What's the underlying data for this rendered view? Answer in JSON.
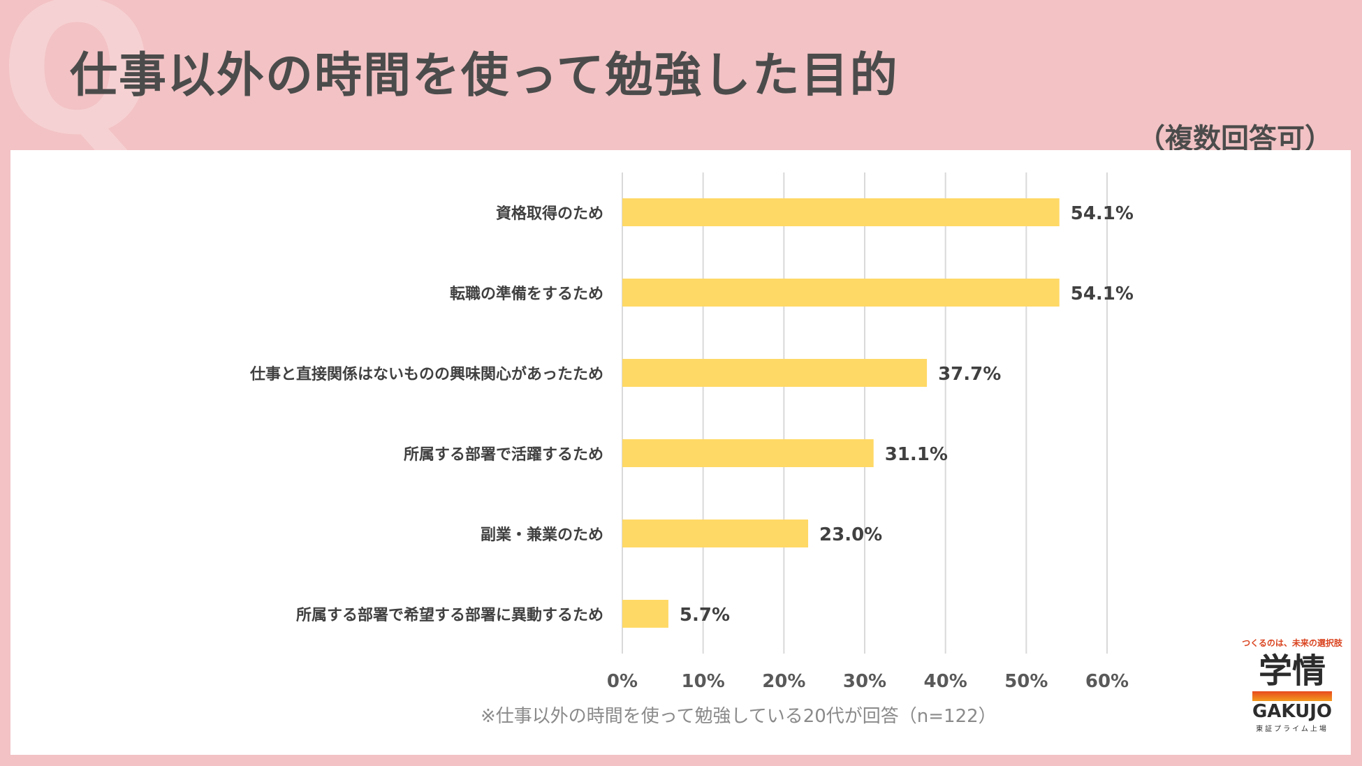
{
  "header": {
    "title": "仕事以外の時間を使って勉強した目的",
    "subtitle": "（複数回答可）",
    "watermark": "Q"
  },
  "footnote": "※仕事以外の時間を使って勉強している20代が回答（n=122）",
  "logo": {
    "tagline": "つくるのは、未来の選択肢",
    "name_ja": "学情",
    "name_en": "GAKUJO",
    "listing": "東証プライム上場"
  },
  "colors": {
    "bar": "#ffd966",
    "grid": "#d9d9d9",
    "label": "#404040",
    "background": "#f2c2c4"
  },
  "chart_data": {
    "type": "bar",
    "orientation": "horizontal",
    "title": "仕事以外の時間を使って勉強した目的",
    "categories": [
      "資格取得のため",
      "転職の準備をするため",
      "仕事と直接関係はないものの興味関心があったため",
      "所属する部署で活躍するため",
      "副業・兼業のため",
      "所属する部署で希望する部署に異動するため"
    ],
    "values": [
      54.1,
      54.1,
      37.7,
      31.1,
      23.0,
      5.7
    ],
    "value_labels": [
      "54.1%",
      "54.1%",
      "37.7%",
      "31.1%",
      "23.0%",
      "5.7%"
    ],
    "xlim": [
      0,
      60
    ],
    "xticks": [
      0,
      10,
      20,
      30,
      40,
      50,
      60
    ],
    "xtick_labels": [
      "0%",
      "10%",
      "20%",
      "30%",
      "40%",
      "50%",
      "60%"
    ],
    "xlabel": "",
    "ylabel": "",
    "grid": true
  }
}
